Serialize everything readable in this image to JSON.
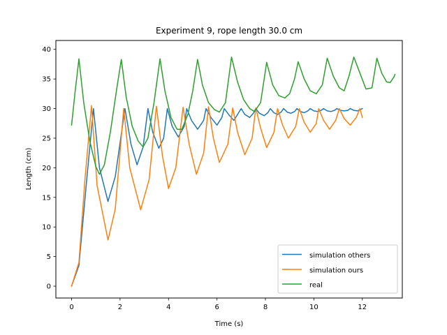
{
  "chart_data": {
    "type": "line",
    "title": "Experiment 9, rope length 30.0 cm",
    "xlabel": "Time (s)",
    "ylabel": "Length (cm)",
    "xlim": [
      -0.65,
      13.65
    ],
    "ylim": [
      -2,
      41.5
    ],
    "xticks": [
      0,
      2,
      4,
      6,
      8,
      10,
      12
    ],
    "yticks": [
      0,
      5,
      10,
      15,
      20,
      25,
      30,
      35,
      40
    ],
    "grid": false,
    "legend": "lower-right",
    "series": [
      {
        "name": "simulation others",
        "color": "#1f77b4",
        "points": [
          [
            0,
            0
          ],
          [
            0.3,
            3.5
          ],
          [
            0.6,
            17
          ],
          [
            0.9,
            30
          ],
          [
            1.15,
            20
          ],
          [
            1.5,
            14.3
          ],
          [
            1.8,
            18.5
          ],
          [
            2.2,
            30
          ],
          [
            2.45,
            24
          ],
          [
            2.7,
            20.5
          ],
          [
            2.95,
            23.5
          ],
          [
            3.15,
            30
          ],
          [
            3.35,
            26
          ],
          [
            3.6,
            23.3
          ],
          [
            3.8,
            25
          ],
          [
            3.95,
            30
          ],
          [
            4.15,
            27
          ],
          [
            4.4,
            25.2
          ],
          [
            4.65,
            27
          ],
          [
            4.75,
            30
          ],
          [
            4.95,
            28
          ],
          [
            5.2,
            26.5
          ],
          [
            5.45,
            28
          ],
          [
            5.55,
            30
          ],
          [
            5.75,
            28.5
          ],
          [
            6.0,
            27.2
          ],
          [
            6.2,
            28.5
          ],
          [
            6.3,
            30
          ],
          [
            6.5,
            28.9
          ],
          [
            6.7,
            28
          ],
          [
            6.85,
            29
          ],
          [
            7.0,
            30
          ],
          [
            7.15,
            29
          ],
          [
            7.35,
            28.5
          ],
          [
            7.5,
            29.2
          ],
          [
            7.6,
            30
          ],
          [
            7.75,
            29.2
          ],
          [
            7.95,
            28.8
          ],
          [
            8.1,
            29.3
          ],
          [
            8.2,
            30
          ],
          [
            8.35,
            29.3
          ],
          [
            8.5,
            29
          ],
          [
            8.65,
            29.4
          ],
          [
            8.75,
            30
          ],
          [
            8.9,
            29.4
          ],
          [
            9.05,
            29.2
          ],
          [
            9.2,
            29.5
          ],
          [
            9.3,
            30
          ],
          [
            9.45,
            29.5
          ],
          [
            9.6,
            29.3
          ],
          [
            9.75,
            29.6
          ],
          [
            9.85,
            30
          ],
          [
            10.0,
            29.6
          ],
          [
            10.15,
            29.5
          ],
          [
            10.3,
            29.7
          ],
          [
            10.4,
            30
          ],
          [
            10.55,
            29.6
          ],
          [
            10.7,
            29.5
          ],
          [
            10.85,
            29.7
          ],
          [
            10.95,
            30
          ],
          [
            11.1,
            29.7
          ],
          [
            11.25,
            29.6
          ],
          [
            11.4,
            29.7
          ],
          [
            11.5,
            30
          ],
          [
            11.65,
            29.7
          ],
          [
            11.8,
            29.6
          ],
          [
            11.9,
            29.8
          ],
          [
            12.0,
            30
          ]
        ]
      },
      {
        "name": "simulation ours",
        "color": "#ff7f0e",
        "points": [
          [
            0,
            0
          ],
          [
            0.3,
            4
          ],
          [
            0.55,
            18
          ],
          [
            0.82,
            30.5
          ],
          [
            1.05,
            17
          ],
          [
            1.5,
            7.8
          ],
          [
            1.8,
            13
          ],
          [
            2.15,
            30
          ],
          [
            2.4,
            20
          ],
          [
            2.85,
            12.9
          ],
          [
            3.2,
            18
          ],
          [
            3.5,
            30.4
          ],
          [
            3.75,
            22
          ],
          [
            4.0,
            16.5
          ],
          [
            4.3,
            20
          ],
          [
            4.6,
            30.2
          ],
          [
            4.85,
            24
          ],
          [
            5.15,
            18.9
          ],
          [
            5.45,
            22.5
          ],
          [
            5.65,
            30.3
          ],
          [
            5.85,
            25
          ],
          [
            6.1,
            20.9
          ],
          [
            6.45,
            24
          ],
          [
            6.65,
            30.1
          ],
          [
            6.85,
            26
          ],
          [
            7.15,
            22.2
          ],
          [
            7.45,
            25
          ],
          [
            7.6,
            30.1
          ],
          [
            7.8,
            26.7
          ],
          [
            8.05,
            23.4
          ],
          [
            8.35,
            26
          ],
          [
            8.5,
            30
          ],
          [
            8.7,
            27.3
          ],
          [
            8.95,
            25
          ],
          [
            9.25,
            27
          ],
          [
            9.4,
            30
          ],
          [
            9.6,
            27.7
          ],
          [
            9.85,
            26
          ],
          [
            10.1,
            27.5
          ],
          [
            10.2,
            30
          ],
          [
            10.4,
            28
          ],
          [
            10.65,
            26.5
          ],
          [
            10.9,
            28
          ],
          [
            11.05,
            30
          ],
          [
            11.25,
            28.3
          ],
          [
            11.5,
            27.2
          ],
          [
            11.75,
            28.5
          ],
          [
            11.9,
            30
          ],
          [
            12.0,
            28.5
          ]
        ]
      },
      {
        "name": "real",
        "color": "#2ca02c",
        "points": [
          [
            0,
            27.2
          ],
          [
            0.15,
            33
          ],
          [
            0.3,
            38.4
          ],
          [
            0.5,
            31
          ],
          [
            0.75,
            24.5
          ],
          [
            1.0,
            20.2
          ],
          [
            1.15,
            18.9
          ],
          [
            1.35,
            20.5
          ],
          [
            1.6,
            26
          ],
          [
            1.85,
            33
          ],
          [
            2.05,
            38.3
          ],
          [
            2.25,
            32
          ],
          [
            2.5,
            27
          ],
          [
            2.75,
            24.5
          ],
          [
            2.95,
            23.5
          ],
          [
            3.15,
            25
          ],
          [
            3.4,
            31
          ],
          [
            3.65,
            38.4
          ],
          [
            3.85,
            33
          ],
          [
            4.1,
            28.5
          ],
          [
            4.35,
            26.5
          ],
          [
            4.55,
            26.5
          ],
          [
            4.8,
            29
          ],
          [
            5.0,
            33
          ],
          [
            5.2,
            38.3
          ],
          [
            5.4,
            34
          ],
          [
            5.65,
            31
          ],
          [
            5.9,
            29.8
          ],
          [
            6.1,
            29.4
          ],
          [
            6.35,
            31
          ],
          [
            6.6,
            38.7
          ],
          [
            6.85,
            34.5
          ],
          [
            7.1,
            31.5
          ],
          [
            7.35,
            30
          ],
          [
            7.55,
            29.5
          ],
          [
            7.8,
            31
          ],
          [
            8.05,
            37.8
          ],
          [
            8.3,
            34
          ],
          [
            8.55,
            32.2
          ],
          [
            8.8,
            31.8
          ],
          [
            9.0,
            32.5
          ],
          [
            9.2,
            35
          ],
          [
            9.35,
            37.9
          ],
          [
            9.6,
            35
          ],
          [
            9.85,
            33
          ],
          [
            10.1,
            32.5
          ],
          [
            10.35,
            34
          ],
          [
            10.55,
            38.5
          ],
          [
            10.8,
            35.5
          ],
          [
            11.05,
            33.5
          ],
          [
            11.25,
            33
          ],
          [
            11.45,
            35.5
          ],
          [
            11.65,
            38.7
          ],
          [
            11.9,
            36
          ],
          [
            12.15,
            33.3
          ],
          [
            12.4,
            33.5
          ],
          [
            12.6,
            38.5
          ],
          [
            12.8,
            36
          ],
          [
            13.0,
            34.5
          ],
          [
            13.15,
            34.4
          ],
          [
            13.3,
            35.3
          ],
          [
            13.35,
            35.8
          ]
        ]
      }
    ]
  }
}
